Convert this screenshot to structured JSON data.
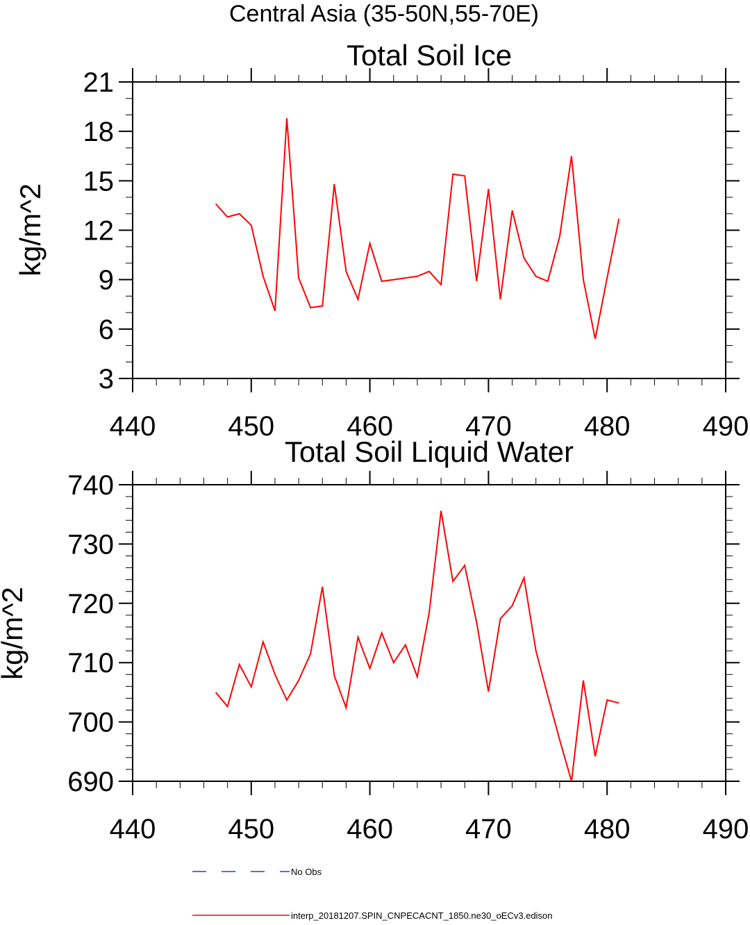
{
  "main_title": "Central Asia (35-50N,55-70E)",
  "legend": {
    "items": [
      {
        "label": "No Obs",
        "color": "#3333cc",
        "dash": true
      },
      {
        "label": "interp_20181207.SPIN_CNPECACNT_1850.ne30_oECv3.edison",
        "color": "#ff0000",
        "dash": false
      }
    ]
  },
  "chart_data": [
    {
      "type": "line",
      "title": "Total Soil Ice",
      "xlabel": "",
      "ylabel": "kg/m^2",
      "xlim": [
        440,
        490
      ],
      "ylim": [
        3,
        21
      ],
      "xticks": [
        440,
        450,
        460,
        470,
        480,
        490
      ],
      "yticks": [
        3,
        6,
        9,
        12,
        15,
        18,
        21
      ],
      "x_minor_step": 2,
      "y_minor_step": 1,
      "grid": false,
      "series": [
        {
          "name": "interp_20181207.SPIN_CNPECACNT_1850.ne30_oECv3.edison",
          "color": "#ff0000",
          "x": [
            447,
            448,
            449,
            450,
            451,
            452,
            453,
            454,
            455,
            456,
            457,
            458,
            459,
            460,
            461,
            462,
            463,
            464,
            465,
            466,
            467,
            468,
            469,
            470,
            471,
            472,
            473,
            474,
            475,
            476,
            477,
            478,
            479,
            480,
            481
          ],
          "y": [
            13.6,
            12.8,
            13.0,
            12.3,
            9.2,
            7.1,
            18.8,
            9.1,
            7.3,
            7.4,
            14.8,
            9.5,
            7.8,
            11.2,
            8.9,
            9.0,
            9.1,
            9.2,
            9.5,
            8.7,
            15.4,
            15.3,
            8.9,
            14.5,
            7.8,
            13.2,
            10.3,
            9.2,
            8.9,
            11.6,
            16.5,
            9.0,
            5.4,
            9.1,
            12.7
          ]
        }
      ]
    },
    {
      "type": "line",
      "title": "Total Soil Liquid Water",
      "xlabel": "",
      "ylabel": "kg/m^2",
      "xlim": [
        440,
        490
      ],
      "ylim": [
        690,
        740
      ],
      "xticks": [
        440,
        450,
        460,
        470,
        480,
        490
      ],
      "yticks": [
        690,
        700,
        710,
        720,
        730,
        740
      ],
      "x_minor_step": 2,
      "y_minor_step": 2,
      "grid": false,
      "series": [
        {
          "name": "interp_20181207.SPIN_CNPECACNT_1850.ne30_oECv3.edison",
          "color": "#ff0000",
          "x": [
            447,
            448,
            449,
            450,
            451,
            452,
            453,
            454,
            455,
            456,
            457,
            458,
            459,
            460,
            461,
            462,
            463,
            464,
            465,
            466,
            467,
            468,
            469,
            470,
            471,
            472,
            473,
            474,
            475,
            476,
            477,
            478,
            479,
            480,
            481
          ],
          "y": [
            705.0,
            702.6,
            709.7,
            705.9,
            713.5,
            708.0,
            703.7,
            707.0,
            711.5,
            722.8,
            707.8,
            702.4,
            714.3,
            709.0,
            715.0,
            710.0,
            713.0,
            707.6,
            718.4,
            735.6,
            723.7,
            726.4,
            716.8,
            705.1,
            717.4,
            719.6,
            724.3,
            712.0,
            704.4,
            697.0,
            690.0,
            707.0,
            694.2,
            703.7,
            703.2
          ]
        }
      ]
    }
  ]
}
